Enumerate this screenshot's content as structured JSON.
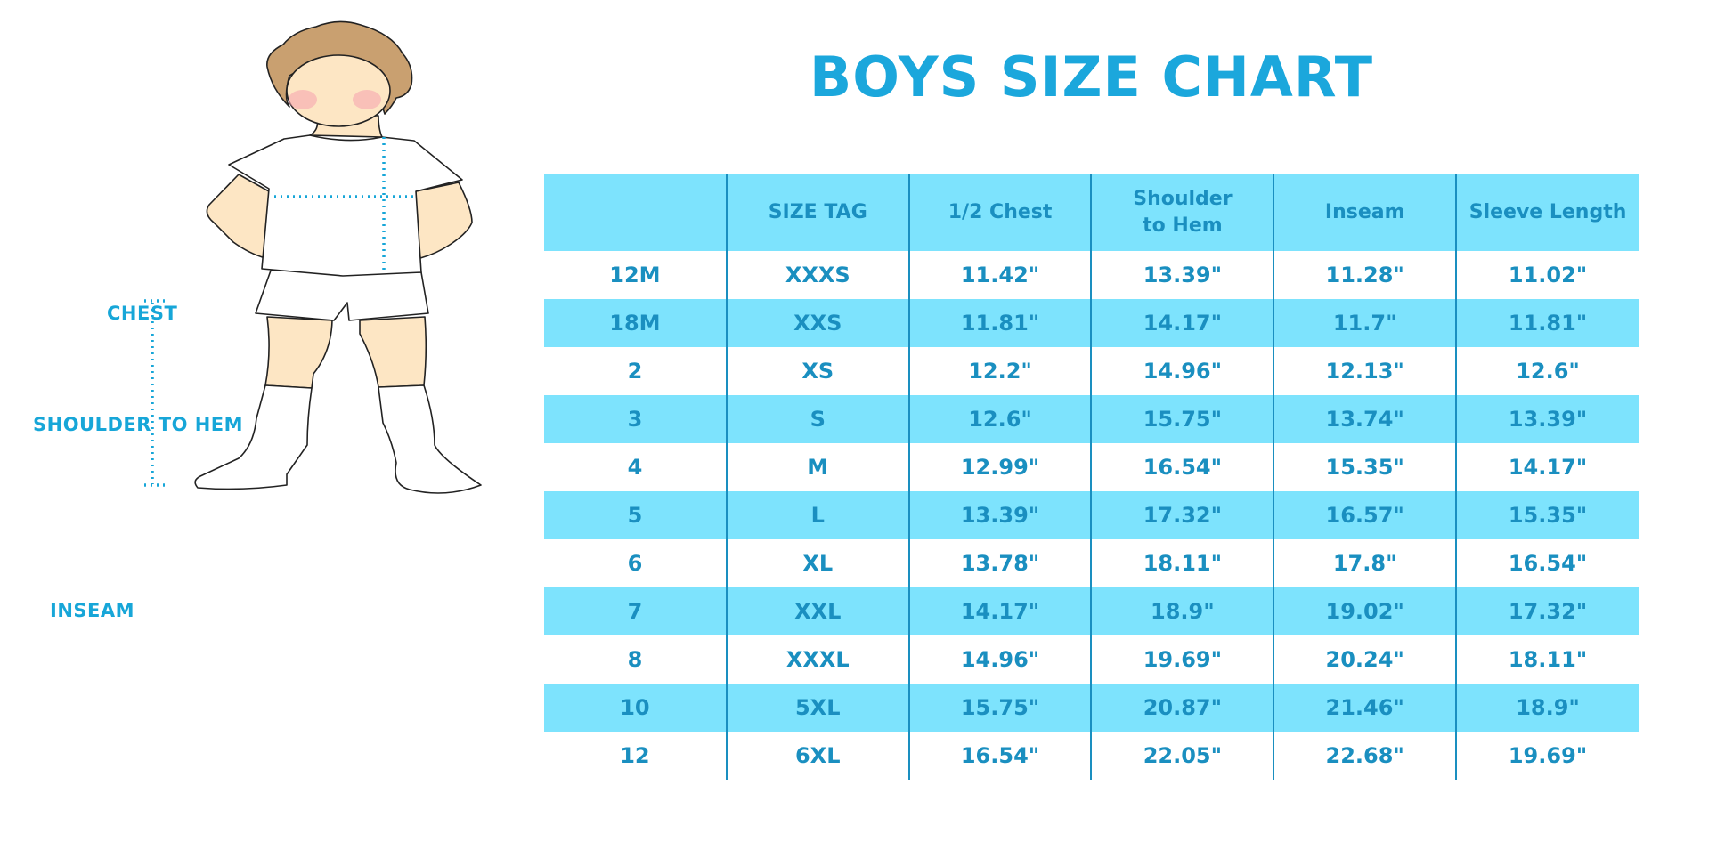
{
  "title": "BOYS SIZE CHART",
  "colors": {
    "title": "#1ba7dc",
    "table_text": "#1a8fc0",
    "band": "#7de3fd",
    "hair": "#c9a070",
    "skin": "#fde6c4"
  },
  "figure": {
    "labels": {
      "chest": "CHEST",
      "shoulder_to_hem": "SHOULDER TO HEM",
      "inseam": "INSEAM"
    }
  },
  "table": {
    "headers": [
      "",
      "SIZE TAG",
      "1/2 Chest",
      "Shoulder to Hem",
      "Inseam",
      "Sleeve Length"
    ],
    "rows": [
      [
        "12M",
        "XXXS",
        "11.42\"",
        "13.39\"",
        "11.28\"",
        "11.02\""
      ],
      [
        "18M",
        "XXS",
        "11.81\"",
        "14.17\"",
        "11.7\"",
        "11.81\""
      ],
      [
        "2",
        "XS",
        "12.2\"",
        "14.96\"",
        "12.13\"",
        "12.6\""
      ],
      [
        "3",
        "S",
        "12.6\"",
        "15.75\"",
        "13.74\"",
        "13.39\""
      ],
      [
        "4",
        "M",
        "12.99\"",
        "16.54\"",
        "15.35\"",
        "14.17\""
      ],
      [
        "5",
        "L",
        "13.39\"",
        "17.32\"",
        "16.57\"",
        "15.35\""
      ],
      [
        "6",
        "XL",
        "13.78\"",
        "18.11\"",
        "17.8\"",
        "16.54\""
      ],
      [
        "7",
        "XXL",
        "14.17\"",
        "18.9\"",
        "19.02\"",
        "17.32\""
      ],
      [
        "8",
        "XXXL",
        "14.96\"",
        "19.69\"",
        "20.24\"",
        "18.11\""
      ],
      [
        "10",
        "5XL",
        "15.75\"",
        "20.87\"",
        "21.46\"",
        "18.9\""
      ],
      [
        "12",
        "6XL",
        "16.54\"",
        "22.05\"",
        "22.68\"",
        "19.69\""
      ]
    ]
  }
}
